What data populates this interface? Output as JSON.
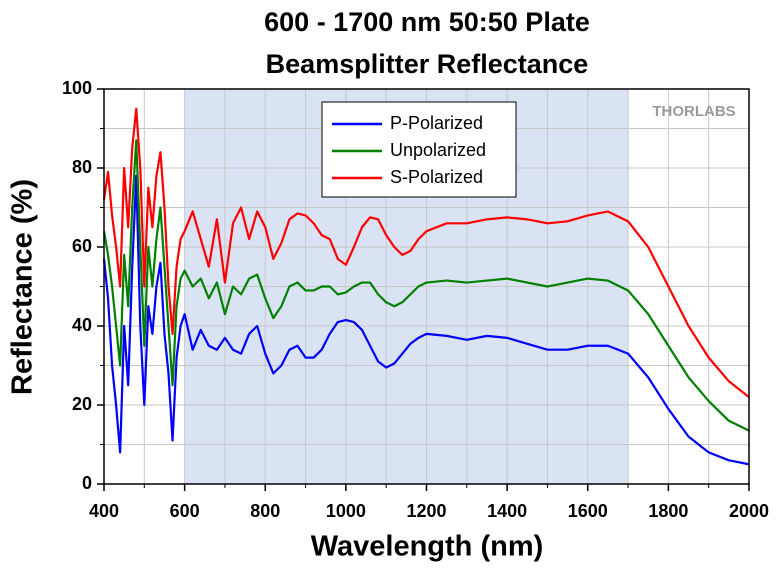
{
  "chart_data": {
    "type": "line",
    "title": [
      "600 - 1700 nm 50:50 Plate",
      "Beamsplitter Reflectance"
    ],
    "x_label": "Wavelength (nm)",
    "y_label": "Reflectance (%)",
    "watermark": "THORLABS",
    "shaded_region": [
      600,
      1700
    ],
    "x": [
      400,
      410,
      420,
      430,
      440,
      450,
      460,
      470,
      480,
      490,
      500,
      510,
      520,
      530,
      540,
      550,
      560,
      570,
      580,
      590,
      600,
      620,
      640,
      660,
      680,
      700,
      720,
      740,
      760,
      780,
      800,
      820,
      840,
      860,
      880,
      900,
      920,
      940,
      960,
      980,
      1000,
      1020,
      1040,
      1060,
      1080,
      1100,
      1120,
      1140,
      1160,
      1180,
      1200,
      1250,
      1300,
      1350,
      1400,
      1450,
      1500,
      1550,
      1600,
      1650,
      1700,
      1750,
      1800,
      1850,
      1900,
      1950,
      2000
    ],
    "series": [
      {
        "name": "P-Polarized",
        "color": "#0000ff",
        "values": [
          57,
          47,
          30,
          20,
          8,
          40,
          25,
          55,
          78,
          40,
          20,
          45,
          38,
          50,
          56,
          38,
          28,
          11,
          32,
          40,
          43,
          34,
          39,
          35,
          34,
          37,
          34,
          33,
          38,
          40,
          33,
          28,
          30,
          34,
          35,
          32,
          32,
          34,
          38,
          41,
          41.5,
          41,
          39,
          35,
          31,
          29.5,
          30.5,
          33,
          35.5,
          37,
          38,
          37.5,
          36.5,
          37.5,
          37,
          35.5,
          34,
          34,
          35,
          35,
          33,
          27,
          19,
          12,
          8,
          6,
          5
        ]
      },
      {
        "name": "Unpolarized",
        "color": "#008000",
        "values": [
          64,
          58,
          50,
          40,
          30,
          58,
          45,
          70,
          87,
          60,
          35,
          60,
          50,
          62,
          70,
          55,
          40,
          25,
          45,
          52,
          54,
          50,
          52,
          47,
          51,
          43,
          50,
          48,
          52,
          53,
          47,
          42,
          45,
          50,
          51,
          49,
          49,
          50,
          50,
          48,
          48.5,
          50,
          51,
          51,
          48,
          46,
          45,
          46,
          48,
          50,
          51,
          51.5,
          51,
          51.5,
          52,
          51,
          50,
          51,
          52,
          51.5,
          49,
          43,
          35,
          27,
          21,
          16,
          13.5
        ]
      },
      {
        "name": "S-Polarized",
        "color": "#ff0000",
        "values": [
          72,
          79,
          68,
          60,
          50,
          80,
          65,
          85,
          95,
          80,
          50,
          75,
          65,
          78,
          84,
          70,
          50,
          38,
          55,
          62,
          64,
          69,
          62,
          55,
          67,
          51,
          66,
          70,
          62,
          69,
          65,
          57,
          61,
          67,
          68.5,
          68,
          66,
          63,
          62,
          57,
          55.5,
          60,
          65,
          67.5,
          67,
          63,
          60,
          58,
          59,
          62,
          64,
          66,
          66,
          67,
          67.5,
          67,
          66,
          66.5,
          68,
          69,
          66.5,
          60,
          50,
          40,
          32,
          26,
          22
        ]
      }
    ],
    "xlim": [
      400,
      2000
    ],
    "xticks": [
      400,
      600,
      800,
      1000,
      1200,
      1400,
      1600,
      1800,
      2000
    ],
    "x_minor_ticks": [
      500,
      700,
      900,
      1100,
      1300,
      1500,
      1700,
      1900
    ],
    "ylim": [
      0,
      100
    ],
    "yticks": [
      0,
      20,
      40,
      60,
      80,
      100
    ],
    "y_minor_ticks": [
      10,
      30,
      50,
      70,
      90
    ],
    "grid": true,
    "legend": "top"
  }
}
